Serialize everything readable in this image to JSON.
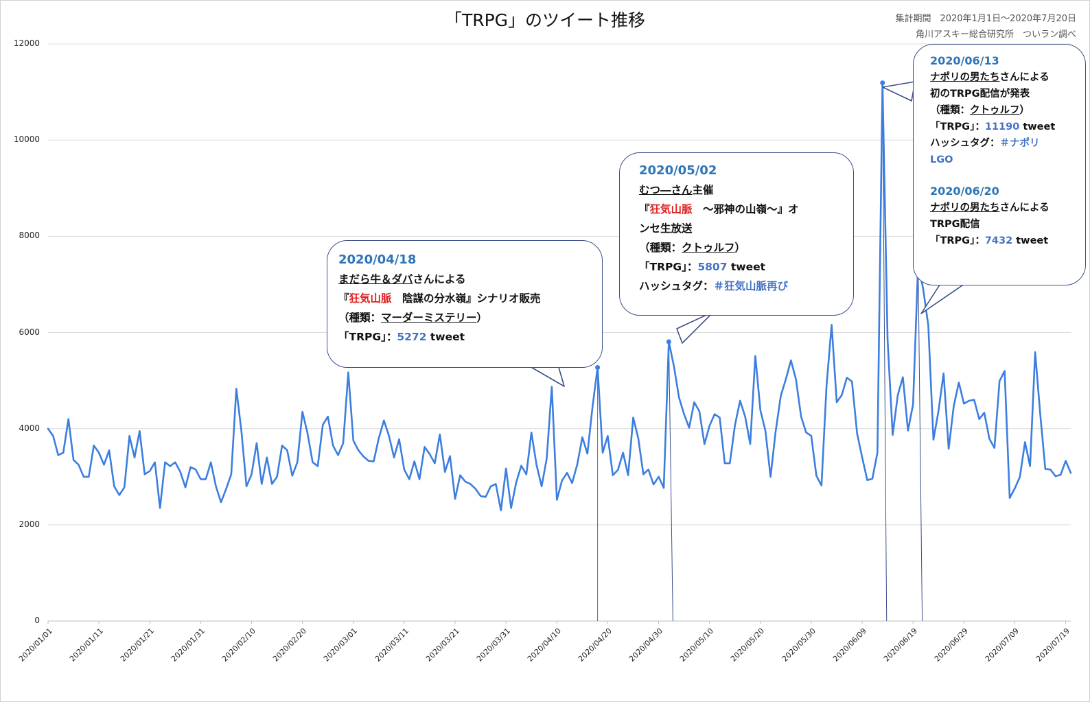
{
  "chart_data": {
    "type": "line",
    "title": "「TRPG」のツイート推移",
    "ylim": [
      0,
      12000
    ],
    "yticks": [
      0,
      2000,
      4000,
      6000,
      8000,
      10000,
      12000
    ],
    "xstart": "2020-01-01",
    "xend": "2020-07-20",
    "xtick_labels": [
      "2020/01/01",
      "2020/01/11",
      "2020/01/21",
      "2020/01/31",
      "2020/02/10",
      "2020/02/20",
      "2020/03/01",
      "2020/03/11",
      "2020/03/21",
      "2020/03/31",
      "2020/04/10",
      "2020/04/20",
      "2020/04/30",
      "2020/05/10",
      "2020/05/20",
      "2020/05/30",
      "2020/06/09",
      "2020/06/19",
      "2020/06/29",
      "2020/07/09",
      "2020/07/19"
    ],
    "grid": true,
    "line_color": "#3c7ee0",
    "values": [
      4000,
      3850,
      3450,
      3500,
      4200,
      3350,
      3250,
      3000,
      3000,
      3650,
      3500,
      3250,
      3550,
      2800,
      2620,
      2780,
      3850,
      3400,
      3950,
      3050,
      3120,
      3300,
      2350,
      3300,
      3220,
      3300,
      3100,
      2780,
      3200,
      3150,
      2950,
      2950,
      3300,
      2800,
      2470,
      2750,
      3050,
      4830,
      3950,
      2800,
      3050,
      3700,
      2850,
      3400,
      2850,
      3000,
      3650,
      3550,
      3020,
      3300,
      4350,
      3900,
      3300,
      3220,
      4080,
      4250,
      3650,
      3450,
      3700,
      5170,
      3750,
      3550,
      3420,
      3330,
      3320,
      3800,
      4170,
      3850,
      3400,
      3780,
      3150,
      2950,
      3320,
      2950,
      3620,
      3470,
      3280,
      3880,
      3100,
      3430,
      2540,
      3030,
      2900,
      2850,
      2750,
      2600,
      2580,
      2800,
      2850,
      2300,
      3170,
      2350,
      2880,
      3230,
      3050,
      3920,
      3250,
      2800,
      3380,
      4870,
      2520,
      2920,
      3080,
      2870,
      3250,
      3820,
      3480,
      4450,
      5272,
      3500,
      3850,
      3030,
      3140,
      3500,
      3030,
      4230,
      3800,
      3050,
      3150,
      2840,
      3000,
      2770,
      5807,
      5300,
      4650,
      4300,
      4020,
      4550,
      4360,
      3680,
      4060,
      4300,
      4230,
      3280,
      3280,
      4070,
      4580,
      4250,
      3680,
      5510,
      4380,
      3950,
      3000,
      3940,
      4680,
      5030,
      5420,
      5020,
      4250,
      3920,
      3850,
      3020,
      2820,
      4900,
      6160,
      4550,
      4700,
      5060,
      4980,
      3900,
      3400,
      2930,
      2960,
      3500,
      11190,
      5850,
      3870,
      4700,
      5070,
      3960,
      4500,
      7432,
      6900,
      6150,
      3770,
      4370,
      5150,
      3580,
      4470,
      4960,
      4520,
      4580,
      4600,
      4200,
      4330,
      3790,
      3600,
      4990,
      5200,
      2560,
      2760,
      3000,
      3720,
      3220,
      5590,
      4300,
      3160,
      3150,
      3010,
      3040,
      3330,
      3080
    ],
    "highlight_points": [
      {
        "date": "2020/04/18",
        "value": 5272
      },
      {
        "date": "2020/05/02",
        "value": 5807
      },
      {
        "date": "2020/06/13",
        "value": 11190
      },
      {
        "date": "2020/06/20",
        "value": 7432
      }
    ]
  },
  "meta": {
    "period": "集計期間　2020年1月1日～2020年7月20日",
    "source": "角川アスキー総合研究所　ついラン調べ"
  },
  "callouts": {
    "apr18": {
      "date": "2020/04/18",
      "l2a": "まだら牛＆ダバ",
      "l2b": "さんによる",
      "l3a": "『",
      "l3b": "狂気山脈",
      "l3c": "　陰謀の分水嶺』シナリオ販売",
      "l4a": "（種類：",
      "l4b": "マーダーミステリー",
      "l4c": "）",
      "l5a": "「TRPG」：",
      "l5b": "5272",
      "l5c": " tweet"
    },
    "may02": {
      "date": "2020/05/02",
      "l2a": "むつ―さん",
      "l2b": "主催",
      "l3a": "『",
      "l3b": "狂気山脈",
      "l3c": "　～邪神の山嶺～』オ",
      "l4": "ンセ生放送",
      "l5a": "（種類：",
      "l5b": "クトゥルフ",
      "l5c": "）",
      "l6a": "「TRPG」：",
      "l6b": "5807",
      "l6c": " tweet",
      "l7a": "ハッシュタグ：",
      "l7b": "＃狂気山脈再び"
    },
    "jun": {
      "date1": "2020/06/13",
      "l2a": "ナポリの男たち",
      "l2b": "さんによる",
      "l3": "初のTRPG配信が発表",
      "l4a": "（種類：",
      "l4b": "クトゥルフ",
      "l4c": "）",
      "l5a": "「TRPG」：",
      "l5b": "11190",
      "l5c": " tweet",
      "l6a": "ハッシュタグ：",
      "l6b": "＃ナポリ",
      "l7": "LGO",
      "date2": "2020/06/20",
      "l9a": "ナポリの男たち",
      "l9b": "さんによる",
      "l10": "TRPG配信",
      "l11a": "「TRPG」：",
      "l11b": "7432",
      "l11c": " tweet"
    }
  }
}
